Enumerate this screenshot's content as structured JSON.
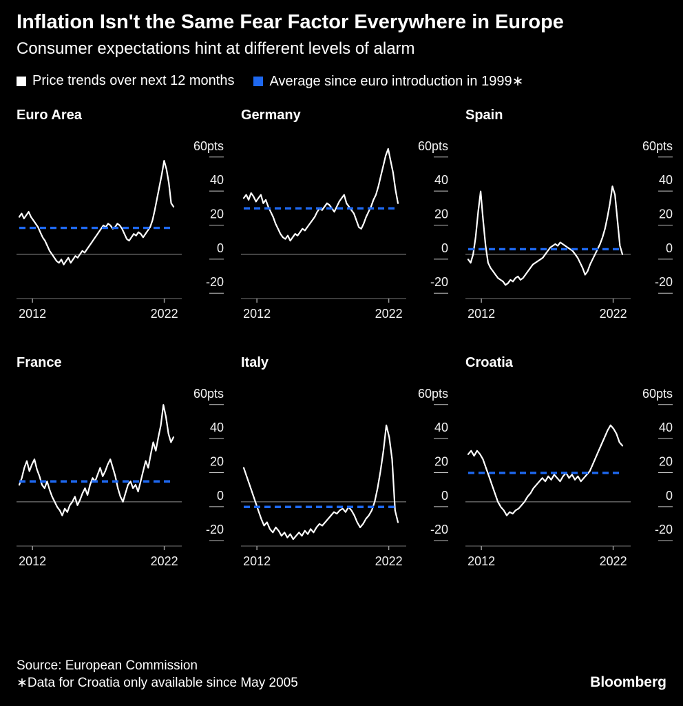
{
  "header": {
    "title": "Inflation Isn't the Same Fear Factor Everywhere in Europe",
    "subtitle": "Consumer expectations hint at different levels of alarm"
  },
  "legend": [
    {
      "label": "Price trends over next 12 months",
      "color": "#ffffff"
    },
    {
      "label": "Average since euro introduction in 1999∗",
      "color": "#1e68f0"
    }
  ],
  "footer": {
    "source": "Source: European Commission",
    "note": "∗Data for Croatia only available since May 2005",
    "brand": "Bloomberg"
  },
  "chart_data": {
    "type": "line",
    "title": "Inflation Isn't the Same Fear Factor Everywhere in Europe",
    "subtitle": "Consumer expectations hint at different levels of alarm",
    "series_names": [
      "Price trends over next 12 months",
      "Average since euro introduction in 1999∗"
    ],
    "x_domain": [
      2011,
      2022.7
    ],
    "xticks": [
      {
        "label": "2012",
        "value": 2012
      },
      {
        "label": "2022",
        "value": 2022
      }
    ],
    "ylim": [
      -26,
      66
    ],
    "yticks": [
      {
        "label": "60pts",
        "value": 60
      },
      {
        "label": "40",
        "value": 40
      },
      {
        "label": "20",
        "value": 20
      },
      {
        "label": "0",
        "value": 0
      },
      {
        "label": "-20",
        "value": -20
      }
    ],
    "grid": false,
    "legend_position": "top",
    "colors": {
      "series": "#ffffff",
      "average": "#1e68f0",
      "zero_line": "#8f8f8f",
      "axis": "#777777"
    },
    "panels": [
      {
        "name": "Euro Area",
        "average": 15.5,
        "values": [
          22,
          24,
          21,
          23,
          25,
          22,
          20,
          18,
          16,
          13,
          10,
          8,
          5,
          2,
          0,
          -2,
          -4,
          -5,
          -3,
          -6,
          -4,
          -2,
          -5,
          -3,
          -1,
          -2,
          0,
          2,
          1,
          3,
          5,
          7,
          9,
          11,
          13,
          15,
          17,
          16,
          18,
          17,
          15,
          16,
          18,
          17,
          15,
          12,
          9,
          8,
          10,
          12,
          11,
          13,
          12,
          10,
          12,
          14,
          16,
          20,
          26,
          33,
          40,
          47,
          55,
          50,
          42,
          30,
          28
        ]
      },
      {
        "name": "Germany",
        "average": 27,
        "values": [
          33,
          35,
          32,
          36,
          34,
          31,
          33,
          35,
          30,
          32,
          28,
          25,
          22,
          18,
          15,
          12,
          10,
          9,
          11,
          8,
          10,
          12,
          11,
          13,
          15,
          14,
          16,
          18,
          20,
          22,
          25,
          27,
          26,
          28,
          30,
          29,
          27,
          25,
          28,
          31,
          33,
          35,
          30,
          28,
          26,
          24,
          20,
          16,
          15,
          18,
          22,
          25,
          28,
          32,
          35,
          40,
          46,
          52,
          58,
          62,
          55,
          48,
          38,
          30
        ]
      },
      {
        "name": "Spain",
        "average": 3,
        "values": [
          -3,
          -5,
          0,
          10,
          25,
          37,
          20,
          5,
          -5,
          -8,
          -10,
          -12,
          -14,
          -15,
          -16,
          -18,
          -17,
          -15,
          -16,
          -14,
          -13,
          -15,
          -14,
          -12,
          -10,
          -8,
          -6,
          -5,
          -4,
          -3,
          -2,
          0,
          2,
          4,
          5,
          6,
          5,
          7,
          6,
          5,
          4,
          3,
          2,
          0,
          -2,
          -5,
          -8,
          -12,
          -10,
          -6,
          -3,
          0,
          3,
          6,
          10,
          15,
          22,
          30,
          40,
          35,
          20,
          5,
          0
        ]
      },
      {
        "name": "France",
        "average": 12,
        "values": [
          10,
          14,
          20,
          24,
          18,
          22,
          25,
          19,
          15,
          10,
          8,
          12,
          7,
          3,
          0,
          -3,
          -5,
          -8,
          -4,
          -6,
          -2,
          0,
          3,
          -2,
          1,
          5,
          8,
          4,
          10,
          14,
          12,
          16,
          20,
          15,
          18,
          22,
          25,
          20,
          15,
          8,
          3,
          0,
          5,
          10,
          12,
          8,
          10,
          6,
          12,
          18,
          24,
          20,
          28,
          35,
          30,
          38,
          45,
          57,
          50,
          40,
          35,
          38
        ]
      },
      {
        "name": "Italy",
        "average": -3,
        "values": [
          20,
          15,
          10,
          5,
          0,
          -5,
          -10,
          -14,
          -12,
          -16,
          -18,
          -15,
          -17,
          -20,
          -18,
          -21,
          -19,
          -22,
          -20,
          -18,
          -20,
          -17,
          -19,
          -16,
          -18,
          -15,
          -13,
          -14,
          -12,
          -10,
          -8,
          -6,
          -7,
          -5,
          -4,
          -6,
          -3,
          -5,
          -8,
          -12,
          -15,
          -13,
          -10,
          -8,
          -5,
          0,
          8,
          18,
          30,
          45,
          38,
          25,
          -5,
          -12
        ]
      },
      {
        "name": "Croatia",
        "average": 17,
        "values": [
          28,
          30,
          27,
          30,
          28,
          25,
          20,
          15,
          10,
          5,
          0,
          -3,
          -5,
          -8,
          -6,
          -7,
          -5,
          -4,
          -2,
          0,
          3,
          5,
          8,
          10,
          12,
          14,
          12,
          15,
          13,
          16,
          14,
          12,
          15,
          17,
          14,
          16,
          13,
          15,
          12,
          14,
          16,
          18,
          22,
          26,
          30,
          34,
          38,
          42,
          45,
          43,
          40,
          35,
          33
        ]
      }
    ]
  }
}
